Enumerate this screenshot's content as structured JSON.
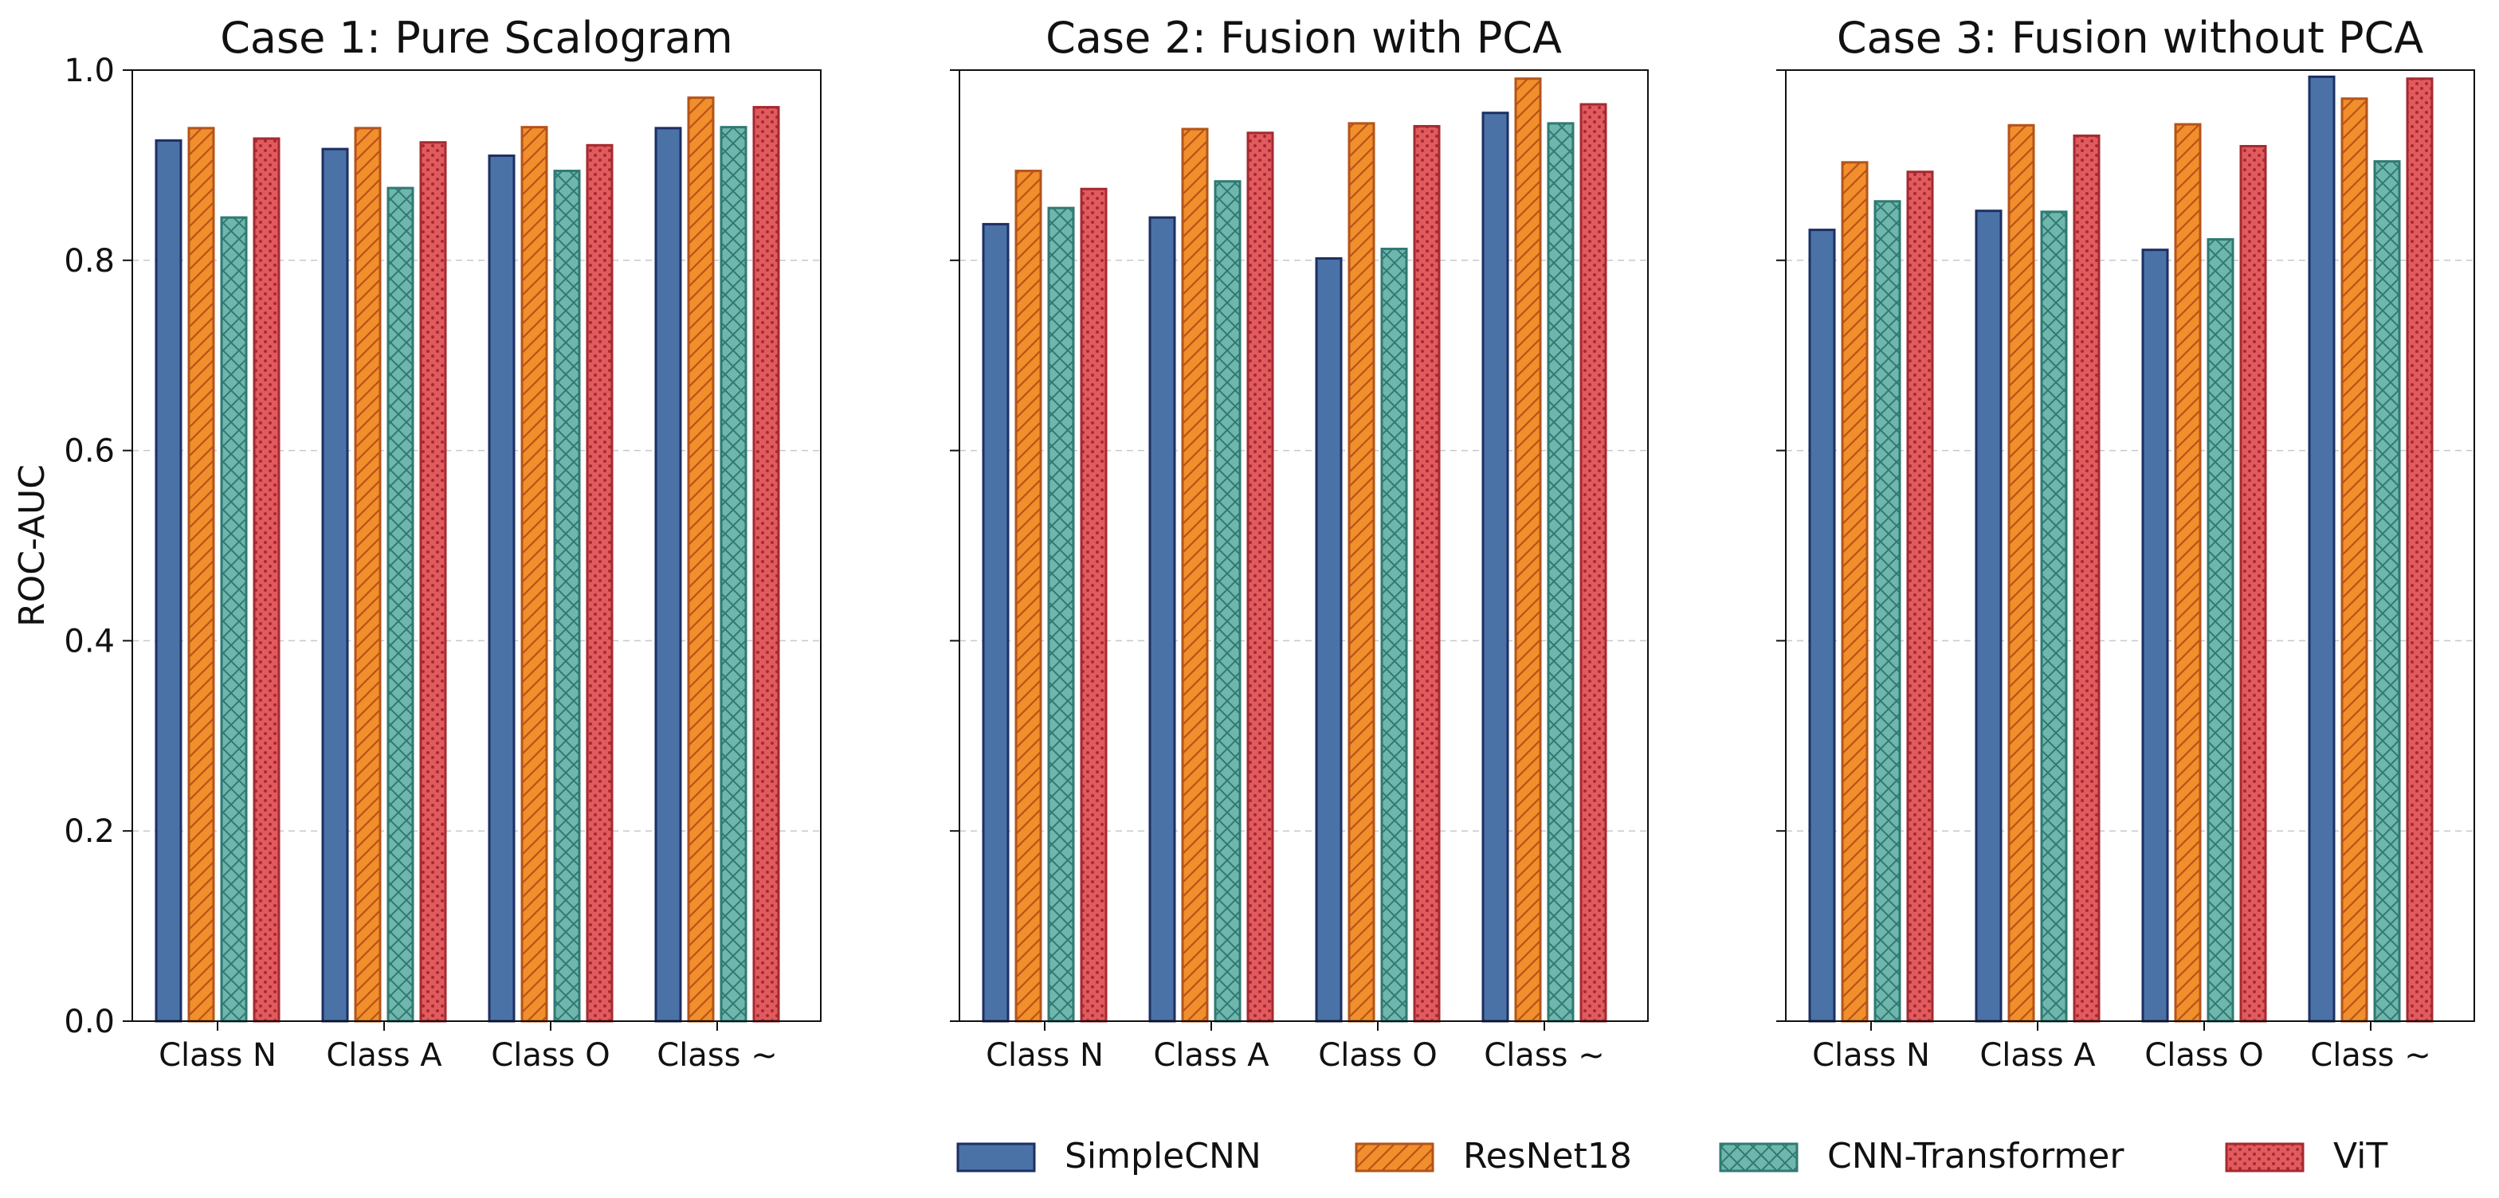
{
  "figure": {
    "ylabel": "ROC-AUC"
  },
  "chart_data": [
    {
      "type": "bar",
      "title": "Case 1: Pure Scalogram",
      "xlabel": "",
      "ylabel": "ROC-AUC",
      "ylim": [
        0,
        1.0
      ],
      "yticks": [
        "0.0",
        "0.2",
        "0.4",
        "0.6",
        "0.8",
        "1.0"
      ],
      "grid": "y-dashed",
      "categories": [
        "Class N",
        "Class A",
        "Class O",
        "Class ~"
      ],
      "series": [
        {
          "name": "SimpleCNN",
          "values": [
            0.926,
            0.917,
            0.91,
            0.939
          ]
        },
        {
          "name": "ResNet18",
          "values": [
            0.939,
            0.939,
            0.94,
            0.971
          ]
        },
        {
          "name": "CNN-Transformer",
          "values": [
            0.845,
            0.876,
            0.894,
            0.94
          ]
        },
        {
          "name": "ViT",
          "values": [
            0.928,
            0.924,
            0.921,
            0.961
          ]
        }
      ]
    },
    {
      "type": "bar",
      "title": "Case 2: Fusion with PCA",
      "xlabel": "",
      "ylabel": "",
      "ylim": [
        0,
        1.0
      ],
      "grid": "y-dashed",
      "categories": [
        "Class N",
        "Class A",
        "Class O",
        "Class ~"
      ],
      "series": [
        {
          "name": "SimpleCNN",
          "values": [
            0.838,
            0.845,
            0.802,
            0.955
          ]
        },
        {
          "name": "ResNet18",
          "values": [
            0.894,
            0.938,
            0.944,
            0.991
          ]
        },
        {
          "name": "CNN-Transformer",
          "values": [
            0.855,
            0.883,
            0.812,
            0.944
          ]
        },
        {
          "name": "ViT",
          "values": [
            0.875,
            0.934,
            0.941,
            0.964
          ]
        }
      ]
    },
    {
      "type": "bar",
      "title": "Case 3: Fusion without PCA",
      "xlabel": "",
      "ylabel": "",
      "ylim": [
        0,
        1.0
      ],
      "grid": "y-dashed",
      "categories": [
        "Class N",
        "Class A",
        "Class O",
        "Class ~"
      ],
      "series": [
        {
          "name": "SimpleCNN",
          "values": [
            0.832,
            0.852,
            0.811,
            0.993
          ]
        },
        {
          "name": "ResNet18",
          "values": [
            0.903,
            0.942,
            0.943,
            0.97
          ]
        },
        {
          "name": "CNN-Transformer",
          "values": [
            0.862,
            0.851,
            0.822,
            0.904
          ]
        },
        {
          "name": "ViT",
          "values": [
            0.893,
            0.931,
            0.92,
            0.991
          ]
        }
      ]
    }
  ],
  "legend": {
    "placement": "bottom-center",
    "items": [
      {
        "label": "SimpleCNN",
        "fill": "#4a72a6",
        "edge": "#1d2f63",
        "pattern": "none"
      },
      {
        "label": "ResNet18",
        "fill": "#f28e2b",
        "edge": "#b3541a",
        "pattern": "diagonal"
      },
      {
        "label": "CNN-Transformer",
        "fill": "#6fb6ad",
        "edge": "#2f7a73",
        "pattern": "crosshatch"
      },
      {
        "label": "ViT",
        "fill": "#e15a5e",
        "edge": "#a52a30",
        "pattern": "dots"
      }
    ]
  }
}
